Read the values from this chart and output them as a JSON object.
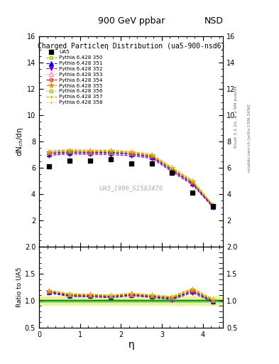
{
  "title_top": "900 GeV ppbar",
  "title_right": "NSD",
  "plot_title": "Charged Particleη Distribution",
  "plot_subtitle": "(ua5-900-nsd6)",
  "watermark": "UA5_1996_S1583476",
  "right_label1": "Rivet 3.1.10, ≥ 2.9M events",
  "right_label2": "mcplots.cern.ch [arXiv:1306.3436]",
  "xlabel": "η",
  "ylabel_main": "dN$_{ch}$/dη",
  "ylabel_ratio": "Ratio to UA5",
  "ylim_main": [
    0,
    16
  ],
  "ylim_ratio": [
    0.5,
    2.0
  ],
  "yticks_main": [
    2,
    4,
    6,
    8,
    10,
    12,
    14,
    16
  ],
  "yticks_ratio": [
    0.5,
    1.0,
    1.5,
    2.0
  ],
  "xlim": [
    0,
    4.5
  ],
  "ua5_eta": [
    0.25,
    0.75,
    1.25,
    1.75,
    2.25,
    2.75,
    3.25,
    3.75,
    4.25
  ],
  "ua5_dndeta": [
    6.1,
    6.55,
    6.55,
    6.65,
    6.35,
    6.35,
    5.6,
    4.1,
    3.1
  ],
  "pythia_eta": [
    0.25,
    0.75,
    1.25,
    1.75,
    2.25,
    2.75,
    3.25,
    3.75,
    4.25
  ],
  "pythia_350_vals": [
    7.15,
    7.22,
    7.2,
    7.2,
    7.1,
    6.9,
    5.9,
    4.9,
    3.1
  ],
  "pythia_351_vals": [
    7.05,
    7.15,
    7.12,
    7.12,
    7.02,
    6.82,
    5.8,
    4.8,
    3.05
  ],
  "pythia_352_vals": [
    6.95,
    7.05,
    7.02,
    7.0,
    6.92,
    6.72,
    5.7,
    4.7,
    3.0
  ],
  "pythia_353_vals": [
    7.18,
    7.28,
    7.22,
    7.22,
    7.12,
    6.92,
    5.92,
    4.92,
    3.12
  ],
  "pythia_354_vals": [
    7.12,
    7.22,
    7.18,
    7.18,
    7.08,
    6.88,
    5.85,
    4.85,
    3.08
  ],
  "pythia_355_vals": [
    7.22,
    7.32,
    7.28,
    7.28,
    7.18,
    6.98,
    5.98,
    4.98,
    3.15
  ],
  "pythia_356_vals": [
    7.15,
    7.25,
    7.2,
    7.2,
    7.1,
    6.9,
    5.9,
    4.9,
    3.1
  ],
  "pythia_357_vals": [
    7.28,
    7.38,
    7.32,
    7.32,
    7.22,
    7.02,
    6.02,
    5.02,
    3.18
  ],
  "pythia_358_vals": [
    7.32,
    7.42,
    7.38,
    7.38,
    7.28,
    7.08,
    6.08,
    5.08,
    3.22
  ],
  "series": [
    {
      "label": "Pythia 6.428 350",
      "color": "#aaaa00",
      "marker": "s",
      "linestyle": "--",
      "filled": false
    },
    {
      "label": "Pythia 6.428 351",
      "color": "#0000dd",
      "marker": "^",
      "linestyle": "--",
      "filled": true
    },
    {
      "label": "Pythia 6.428 352",
      "color": "#7700cc",
      "marker": "v",
      "linestyle": "--",
      "filled": true
    },
    {
      "label": "Pythia 6.428 353",
      "color": "#ff66bb",
      "marker": "^",
      "linestyle": "dotted",
      "filled": false
    },
    {
      "label": "Pythia 6.428 354",
      "color": "#cc0000",
      "marker": "o",
      "linestyle": "--",
      "filled": false
    },
    {
      "label": "Pythia 6.428 355",
      "color": "#ff8800",
      "marker": "*",
      "linestyle": "--",
      "filled": true
    },
    {
      "label": "Pythia 6.428 356",
      "color": "#88aa00",
      "marker": "s",
      "linestyle": "dotted",
      "filled": false
    },
    {
      "label": "Pythia 6.428 357",
      "color": "#ccaa00",
      "marker": "+",
      "linestyle": "--",
      "filled": false
    },
    {
      "label": "Pythia 6.428 358",
      "color": "#cccc55",
      "marker": "+",
      "linestyle": "dotted",
      "filled": false
    }
  ],
  "ratio_band_yellow_color": "#dddd00",
  "ratio_band_green_color": "#44cc44",
  "ratio_line_color": "#008800",
  "bg_color": "#ffffff"
}
